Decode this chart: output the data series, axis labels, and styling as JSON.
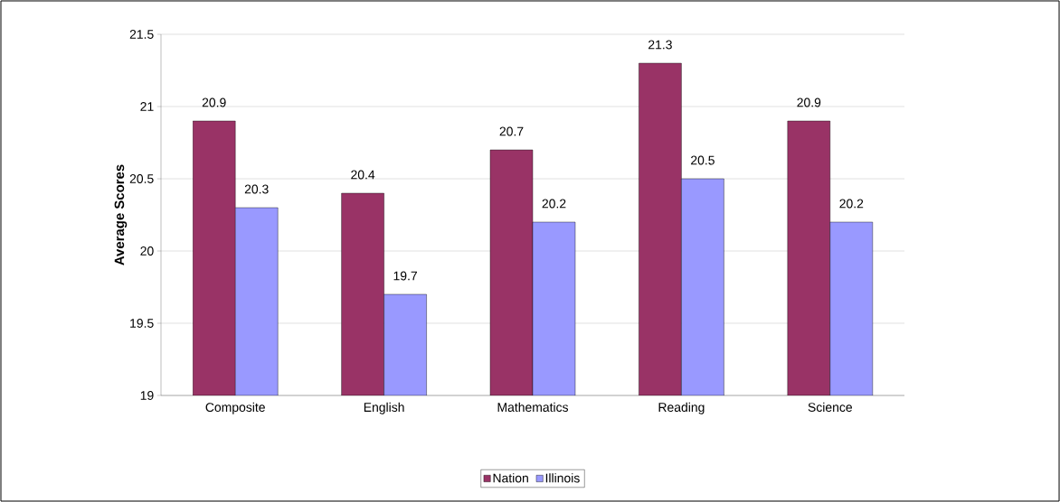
{
  "chart_data": {
    "type": "bar",
    "ylabel": "Average Scores",
    "categories": [
      "Composite",
      "English",
      "Mathematics",
      "Reading",
      "Science"
    ],
    "series": [
      {
        "name": "Nation",
        "color": "#993366",
        "values": [
          20.9,
          20.4,
          20.7,
          21.3,
          20.9
        ]
      },
      {
        "name": "Illinois",
        "color": "#9999ff",
        "values": [
          20.3,
          19.7,
          20.2,
          20.5,
          20.2
        ]
      }
    ],
    "ylim": [
      19,
      21.5
    ],
    "yticks": [
      19,
      19.5,
      20,
      20.5,
      21,
      21.5
    ],
    "grid": "y",
    "legend": "bottom",
    "data_labels": true
  }
}
